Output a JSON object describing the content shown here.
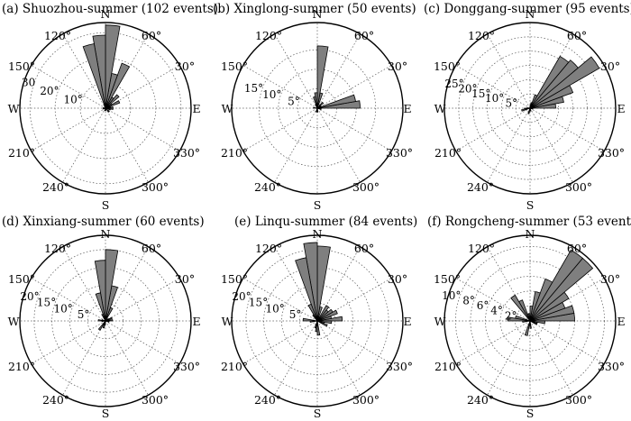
{
  "figure": {
    "direction_labels": {
      "north": "N",
      "south": "S",
      "east": "E",
      "west": "W"
    },
    "angle_labels": [
      "120°",
      "60°",
      "150°",
      "30°",
      "210°",
      "330°",
      "240°",
      "300°"
    ],
    "bar_color": "#7f7f7f"
  },
  "chart_data": [
    {
      "type": "polar-histogram",
      "title": "(a) Shuozhou-summer (102 events)",
      "rmax": 34,
      "rings": [
        10,
        20,
        30
      ],
      "ring_labels": [
        "10°",
        "20°",
        "30"
      ],
      "bin_width_deg": 10,
      "bins": [
        {
          "azimuth_deg": 5,
          "r": 3
        },
        {
          "azimuth_deg": 15,
          "r": 2
        },
        {
          "azimuth_deg": 25,
          "r": 6
        },
        {
          "azimuth_deg": 35,
          "r": 3
        },
        {
          "azimuth_deg": 45,
          "r": 7
        },
        {
          "azimuth_deg": 55,
          "r": 5
        },
        {
          "azimuth_deg": 65,
          "r": 19
        },
        {
          "azimuth_deg": 75,
          "r": 14
        },
        {
          "azimuth_deg": 85,
          "r": 33
        },
        {
          "azimuth_deg": 95,
          "r": 29
        },
        {
          "azimuth_deg": 105,
          "r": 26
        },
        {
          "azimuth_deg": 115,
          "r": 1
        },
        {
          "azimuth_deg": 175,
          "r": 1
        },
        {
          "azimuth_deg": 195,
          "r": 1
        },
        {
          "azimuth_deg": 255,
          "r": 1
        },
        {
          "azimuth_deg": 275,
          "r": 1
        },
        {
          "azimuth_deg": 315,
          "r": 2
        },
        {
          "azimuth_deg": 345,
          "r": 2
        },
        {
          "azimuth_deg": 355,
          "r": 3
        }
      ]
    },
    {
      "type": "polar-histogram",
      "title": "(b) Xinglong-summer (50 events)",
      "rmax": 22,
      "rings": [
        5,
        10,
        15
      ],
      "ring_labels": [
        "5°",
        "10°",
        "15°"
      ],
      "bin_width_deg": 10,
      "bins": [
        {
          "azimuth_deg": 5,
          "r": 11
        },
        {
          "azimuth_deg": 15,
          "r": 10
        },
        {
          "azimuth_deg": 25,
          "r": 1
        },
        {
          "azimuth_deg": 45,
          "r": 2
        },
        {
          "azimuth_deg": 75,
          "r": 4
        },
        {
          "azimuth_deg": 85,
          "r": 16
        },
        {
          "azimuth_deg": 95,
          "r": 4
        },
        {
          "azimuth_deg": 105,
          "r": 3
        },
        {
          "azimuth_deg": 115,
          "r": 1
        },
        {
          "azimuth_deg": 175,
          "r": 1
        },
        {
          "azimuth_deg": 255,
          "r": 1
        },
        {
          "azimuth_deg": 275,
          "r": 1
        },
        {
          "azimuth_deg": 345,
          "r": 1
        }
      ]
    },
    {
      "type": "polar-histogram",
      "title": "(c) Donggang-summer (95 events)",
      "rmax": 30,
      "rings": [
        5,
        10,
        15,
        20,
        25
      ],
      "ring_labels": [
        "5°",
        "10°",
        "15°",
        "20°",
        "25°"
      ],
      "bin_width_deg": 10,
      "bins": [
        {
          "azimuth_deg": 5,
          "r": 9
        },
        {
          "azimuth_deg": 15,
          "r": 12
        },
        {
          "azimuth_deg": 25,
          "r": 16
        },
        {
          "azimuth_deg": 35,
          "r": 28
        },
        {
          "azimuth_deg": 45,
          "r": 22
        },
        {
          "azimuth_deg": 55,
          "r": 21
        },
        {
          "azimuth_deg": 65,
          "r": 5
        },
        {
          "azimuth_deg": 75,
          "r": 2
        },
        {
          "azimuth_deg": 85,
          "r": 1
        },
        {
          "azimuth_deg": 175,
          "r": 1
        },
        {
          "azimuth_deg": 185,
          "r": 2
        },
        {
          "azimuth_deg": 195,
          "r": 3
        },
        {
          "azimuth_deg": 255,
          "r": 2
        },
        {
          "azimuth_deg": 275,
          "r": 1
        },
        {
          "azimuth_deg": 285,
          "r": 1
        },
        {
          "azimuth_deg": 345,
          "r": 1
        }
      ]
    },
    {
      "type": "polar-histogram",
      "title": "(d) Xinxiang-summer (60 events)",
      "rmax": 24,
      "rings": [
        5,
        10,
        15,
        20
      ],
      "ring_labels": [
        "5°",
        "10°",
        "15°",
        "20°"
      ],
      "bin_width_deg": 10,
      "bins": [
        {
          "azimuth_deg": 5,
          "r": 2
        },
        {
          "azimuth_deg": 15,
          "r": 1
        },
        {
          "azimuth_deg": 25,
          "r": 2
        },
        {
          "azimuth_deg": 35,
          "r": 1
        },
        {
          "azimuth_deg": 65,
          "r": 4
        },
        {
          "azimuth_deg": 75,
          "r": 10
        },
        {
          "azimuth_deg": 85,
          "r": 20
        },
        {
          "azimuth_deg": 95,
          "r": 17
        },
        {
          "azimuth_deg": 105,
          "r": 8
        },
        {
          "azimuth_deg": 115,
          "r": 2
        },
        {
          "azimuth_deg": 165,
          "r": 1
        },
        {
          "azimuth_deg": 175,
          "r": 2
        },
        {
          "azimuth_deg": 185,
          "r": 1
        },
        {
          "azimuth_deg": 235,
          "r": 3
        },
        {
          "azimuth_deg": 255,
          "r": 2
        },
        {
          "azimuth_deg": 265,
          "r": 1
        },
        {
          "azimuth_deg": 345,
          "r": 1
        },
        {
          "azimuth_deg": 355,
          "r": 1
        }
      ]
    },
    {
      "type": "polar-histogram",
      "title": "(e) Linqu-summer (84 events)",
      "rmax": 24,
      "rings": [
        5,
        10,
        15,
        20
      ],
      "ring_labels": [
        "5°",
        "10°",
        "15°",
        "20°"
      ],
      "bin_width_deg": 10,
      "bins": [
        {
          "azimuth_deg": 5,
          "r": 7
        },
        {
          "azimuth_deg": 15,
          "r": 4
        },
        {
          "azimuth_deg": 25,
          "r": 6
        },
        {
          "azimuth_deg": 35,
          "r": 5
        },
        {
          "azimuth_deg": 45,
          "r": 4
        },
        {
          "azimuth_deg": 55,
          "r": 5
        },
        {
          "azimuth_deg": 75,
          "r": 4
        },
        {
          "azimuth_deg": 85,
          "r": 21
        },
        {
          "azimuth_deg": 95,
          "r": 22
        },
        {
          "azimuth_deg": 105,
          "r": 18
        },
        {
          "azimuth_deg": 115,
          "r": 5
        },
        {
          "azimuth_deg": 125,
          "r": 2
        },
        {
          "azimuth_deg": 175,
          "r": 4
        },
        {
          "azimuth_deg": 185,
          "r": 2
        },
        {
          "azimuth_deg": 255,
          "r": 2
        },
        {
          "azimuth_deg": 265,
          "r": 3
        },
        {
          "azimuth_deg": 275,
          "r": 4
        },
        {
          "azimuth_deg": 335,
          "r": 3
        },
        {
          "azimuth_deg": 345,
          "r": 2
        },
        {
          "azimuth_deg": 355,
          "r": 4
        }
      ]
    },
    {
      "type": "polar-histogram",
      "title": "(f) Rongcheng-summer (53 events)",
      "rmax": 11.5,
      "rings": [
        2,
        4,
        6,
        8,
        10
      ],
      "ring_labels": [
        "2°",
        "4°",
        "6°",
        "8°",
        "10°"
      ],
      "bin_width_deg": 10,
      "bins": [
        {
          "azimuth_deg": 5,
          "r": 6
        },
        {
          "azimuth_deg": 15,
          "r": 6
        },
        {
          "azimuth_deg": 25,
          "r": 5
        },
        {
          "azimuth_deg": 35,
          "r": 6
        },
        {
          "azimuth_deg": 45,
          "r": 11
        },
        {
          "azimuth_deg": 55,
          "r": 11
        },
        {
          "azimuth_deg": 65,
          "r": 6
        },
        {
          "azimuth_deg": 75,
          "r": 4
        },
        {
          "azimuth_deg": 85,
          "r": 2
        },
        {
          "azimuth_deg": 95,
          "r": 1
        },
        {
          "azimuth_deg": 105,
          "r": 1
        },
        {
          "azimuth_deg": 115,
          "r": 3
        },
        {
          "azimuth_deg": 125,
          "r": 4
        },
        {
          "azimuth_deg": 165,
          "r": 2
        },
        {
          "azimuth_deg": 175,
          "r": 3
        },
        {
          "azimuth_deg": 185,
          "r": 1
        },
        {
          "azimuth_deg": 255,
          "r": 2
        },
        {
          "azimuth_deg": 275,
          "r": 1
        },
        {
          "azimuth_deg": 335,
          "r": 1
        },
        {
          "azimuth_deg": 345,
          "r": 1
        },
        {
          "azimuth_deg": 355,
          "r": 2
        }
      ]
    }
  ]
}
